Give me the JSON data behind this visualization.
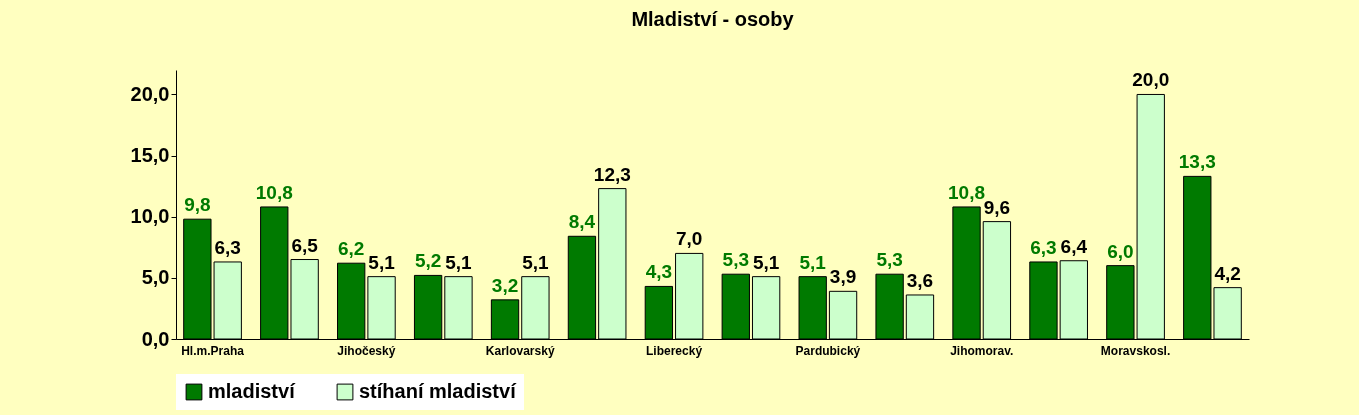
{
  "chart_data": {
    "type": "bar",
    "title": "Mladiství - osoby",
    "categories": [
      "Hl.m.Praha",
      null,
      "Jihočeský",
      null,
      "Karlovarský",
      null,
      "Liberecký",
      null,
      "Pardubický",
      null,
      "Jihomorav.",
      null,
      "Moravskosl.",
      null
    ],
    "series": [
      {
        "name": "mladiství",
        "color": "#007a00",
        "values": [
          9.8,
          10.8,
          6.2,
          5.2,
          3.2,
          8.4,
          4.3,
          5.3,
          5.1,
          5.3,
          10.8,
          6.3,
          6.0,
          13.3
        ],
        "value_labels": [
          "9,8",
          "10,8",
          "6,2",
          "5,2",
          "3,2",
          "8,4",
          "4,3",
          "5,3",
          "5,1",
          "5,3",
          "10,8",
          "6,3",
          "6,0",
          "13,3"
        ]
      },
      {
        "name": "stíhaní mladiství",
        "color": "#ccffcc",
        "values": [
          6.3,
          6.5,
          5.1,
          5.1,
          5.1,
          12.3,
          7.0,
          5.1,
          3.9,
          3.6,
          9.6,
          6.4,
          20.0,
          4.2
        ],
        "value_labels": [
          "6,3",
          "6,5",
          "5,1",
          "5,1",
          "5,1",
          "12,3",
          "7,0",
          "5,1",
          "3,9",
          "3,6",
          "9,6",
          "6,4",
          "20,0",
          "4,2"
        ]
      }
    ],
    "ylim": [
      0,
      22
    ],
    "yticks": [
      {
        "value": 0,
        "label": "0,0"
      },
      {
        "value": 5,
        "label": "5,0"
      },
      {
        "value": 10,
        "label": "10,0"
      },
      {
        "value": 15,
        "label": "15,0"
      },
      {
        "value": 20,
        "label": "20,0"
      }
    ],
    "grid": false,
    "legend": "bottom"
  }
}
